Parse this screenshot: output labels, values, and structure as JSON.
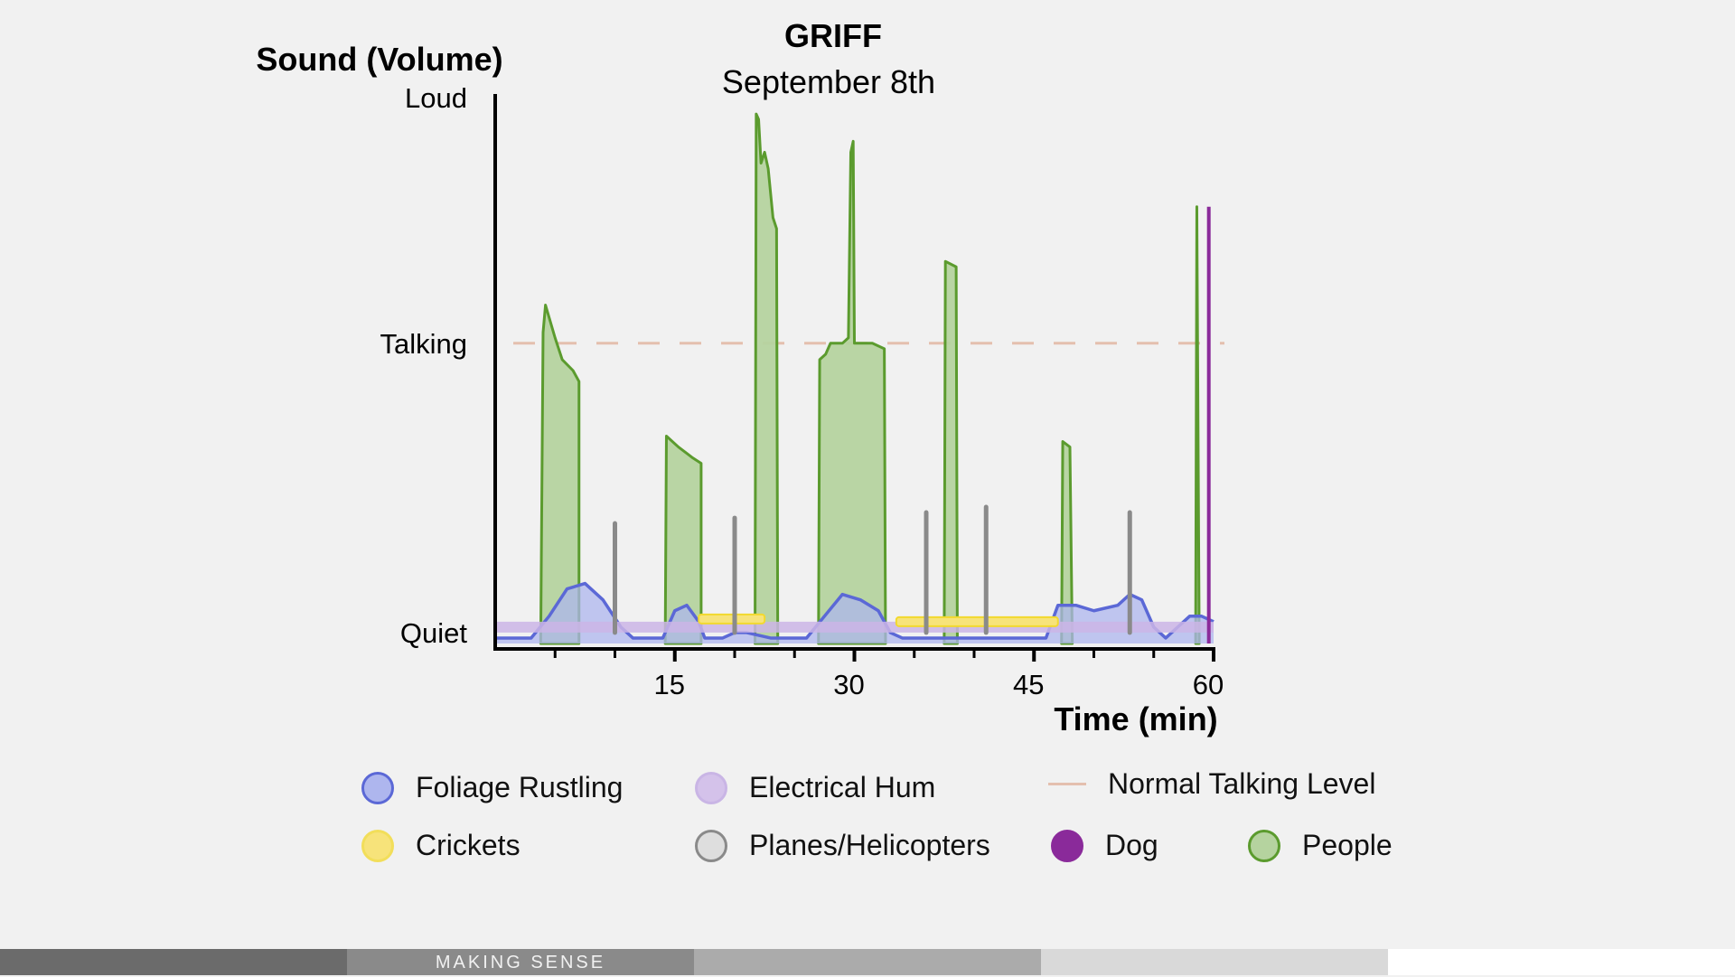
{
  "chart_data": {
    "type": "area",
    "title": "GRIFF",
    "subtitle": "September 8th",
    "ylabel": "Sound (Volume)",
    "xlabel": "Time (min)",
    "xlim": [
      0,
      60
    ],
    "ylim": [
      0,
      1
    ],
    "x_ticks": [
      15,
      30,
      45,
      60
    ],
    "y_ticks": [
      {
        "label": "Quiet",
        "value": 0.02
      },
      {
        "label": "Talking",
        "value": 0.55
      },
      {
        "label": "Loud",
        "value": 1.0
      }
    ],
    "reference_line": {
      "name": "Normal Talking Level",
      "value": 0.55,
      "color": "#e4bfae"
    },
    "series": [
      {
        "name": "Electrical Hum",
        "kind": "band",
        "color": "#cbb5e6",
        "stroke": "#c6b0e4",
        "points": [
          [
            0,
            0.03
          ],
          [
            60,
            0.03
          ]
        ]
      },
      {
        "name": "Foliage Rustling",
        "kind": "area",
        "color": "#aeb6ee",
        "stroke": "#5b68d6",
        "points": [
          [
            0,
            0.01
          ],
          [
            3,
            0.01
          ],
          [
            4.5,
            0.05
          ],
          [
            6,
            0.1
          ],
          [
            7.5,
            0.11
          ],
          [
            9,
            0.08
          ],
          [
            10.5,
            0.03
          ],
          [
            11.5,
            0.01
          ],
          [
            14,
            0.01
          ],
          [
            15,
            0.06
          ],
          [
            16,
            0.07
          ],
          [
            17,
            0.04
          ],
          [
            17.5,
            0.01
          ],
          [
            19,
            0.01
          ],
          [
            20,
            0.02
          ],
          [
            21,
            0.02
          ],
          [
            23,
            0.01
          ],
          [
            26,
            0.01
          ],
          [
            27.5,
            0.05
          ],
          [
            29,
            0.09
          ],
          [
            30.5,
            0.08
          ],
          [
            32,
            0.06
          ],
          [
            33,
            0.02
          ],
          [
            34,
            0.01
          ],
          [
            46,
            0.01
          ],
          [
            47,
            0.07
          ],
          [
            48.5,
            0.07
          ],
          [
            50,
            0.06
          ],
          [
            52,
            0.07
          ],
          [
            53,
            0.09
          ],
          [
            54,
            0.08
          ],
          [
            55,
            0.03
          ],
          [
            56,
            0.01
          ],
          [
            57,
            0.03
          ],
          [
            58,
            0.05
          ],
          [
            59,
            0.05
          ],
          [
            60,
            0.04
          ]
        ]
      },
      {
        "name": "Crickets",
        "kind": "band",
        "color": "#f7e37a",
        "stroke": "#f2d92e",
        "segments": [
          [
            17,
            22.5,
            0.045
          ],
          [
            33.5,
            47,
            0.04
          ]
        ]
      },
      {
        "name": "Planes/Helicopters",
        "kind": "spikes",
        "color": "#8a8a8a",
        "points": [
          [
            10,
            0.22
          ],
          [
            20,
            0.23
          ],
          [
            36,
            0.24
          ],
          [
            41,
            0.25
          ],
          [
            53,
            0.24
          ]
        ]
      },
      {
        "name": "People",
        "kind": "bursts",
        "color": "#b5d39f",
        "stroke": "#5b9b2e",
        "bursts": [
          [
            [
              3.8,
              0
            ],
            [
              4,
              0.57
            ],
            [
              4.2,
              0.62
            ],
            [
              5,
              0.56
            ],
            [
              5.6,
              0.52
            ],
            [
              6.5,
              0.5
            ],
            [
              7,
              0.48
            ],
            [
              7,
              0
            ]
          ],
          [
            [
              14.2,
              0
            ],
            [
              14.3,
              0.38
            ],
            [
              15.3,
              0.36
            ],
            [
              16.5,
              0.34
            ],
            [
              17.2,
              0.33
            ],
            [
              17.2,
              0
            ]
          ],
          [
            [
              21.7,
              0
            ],
            [
              21.8,
              0.97
            ],
            [
              22,
              0.96
            ],
            [
              22.2,
              0.88
            ],
            [
              22.5,
              0.9
            ],
            [
              22.8,
              0.87
            ],
            [
              23.2,
              0.78
            ],
            [
              23.5,
              0.76
            ],
            [
              23.6,
              0
            ]
          ],
          [
            [
              27,
              0
            ],
            [
              27.1,
              0.52
            ],
            [
              27.6,
              0.53
            ],
            [
              28,
              0.55
            ],
            [
              29,
              0.55
            ],
            [
              29.5,
              0.56
            ],
            [
              29.7,
              0.9
            ],
            [
              29.9,
              0.92
            ],
            [
              30,
              0.55
            ],
            [
              31.5,
              0.55
            ],
            [
              32.5,
              0.54
            ],
            [
              32.6,
              0
            ]
          ],
          [
            [
              37.5,
              0
            ],
            [
              37.6,
              0.7
            ],
            [
              38.5,
              0.69
            ],
            [
              38.6,
              0
            ]
          ],
          [
            [
              47.3,
              0
            ],
            [
              47.4,
              0.37
            ],
            [
              48,
              0.36
            ],
            [
              48.2,
              0
            ]
          ],
          [
            [
              58.5,
              0
            ],
            [
              58.6,
              0.8
            ],
            [
              58.8,
              0
            ]
          ]
        ]
      },
      {
        "name": "Dog",
        "kind": "spikes",
        "color": "#8a2a9a",
        "points": [
          [
            59.6,
            0.8
          ]
        ]
      }
    ]
  },
  "legend": [
    {
      "label": "Foliage Rustling",
      "fill": "#aeb6ee",
      "stroke": "#5b68d6",
      "kind": "circle"
    },
    {
      "label": "Electrical Hum",
      "fill": "#d4c2ea",
      "stroke": "#c9b5e5",
      "kind": "circle"
    },
    {
      "label": "Normal Talking Level",
      "fill": "#e4bfae",
      "stroke": "#e4bfae",
      "kind": "line"
    },
    {
      "label": "Crickets",
      "fill": "#f7e37a",
      "stroke": "#f2de5a",
      "kind": "circle"
    },
    {
      "label": "Planes/Helicopters",
      "fill": "#dedede",
      "stroke": "#8a8a8a",
      "kind": "circle"
    },
    {
      "label": "Dog",
      "fill": "#8a2a9a",
      "stroke": "#8a2a9a",
      "kind": "circle"
    },
    {
      "label": "People",
      "fill": "#b5d39f",
      "stroke": "#5b9b2e",
      "kind": "circle"
    }
  ],
  "footer": {
    "label": "MAKING SENSE",
    "colors": [
      "#6b6b6b",
      "#8a8a8a",
      "#ababab",
      "#d9d9d9",
      "#ffffff"
    ]
  }
}
